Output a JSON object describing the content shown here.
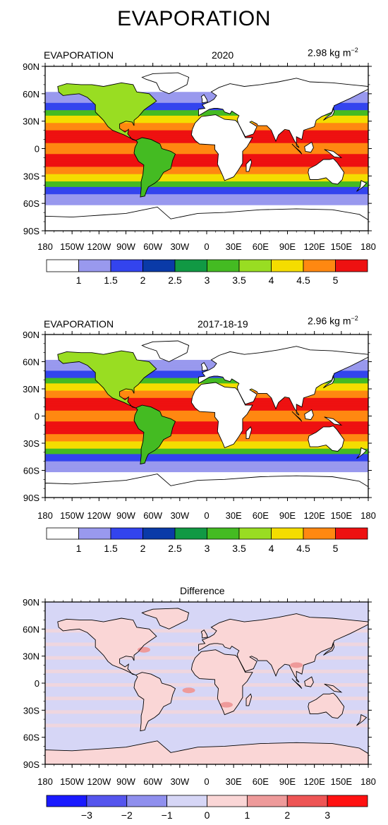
{
  "title": "EVAPORATION",
  "panels": [
    {
      "left_label": "EVAPORATION",
      "center_label": "2020",
      "right_label": "2.98 kg m",
      "right_label_sup": "−2",
      "kind": "abs"
    },
    {
      "left_label": "EVAPORATION",
      "center_label": "2017-18-19",
      "right_label": "2.96 kg m",
      "right_label_sup": "−2",
      "kind": "abs"
    },
    {
      "left_label": "",
      "center_label": "Difference",
      "right_label": "",
      "right_label_sup": "",
      "kind": "diff"
    }
  ],
  "lat_ticks": [
    "90N",
    "60N",
    "30N",
    "0",
    "30S",
    "60S",
    "90S"
  ],
  "lon_ticks": [
    "180",
    "150W",
    "120W",
    "90W",
    "60W",
    "30W",
    "0",
    "30E",
    "60E",
    "90E",
    "120E",
    "150E",
    "180"
  ],
  "colorbars": {
    "abs": {
      "colors": [
        "#ffffff",
        "#9999ee",
        "#3344ee",
        "#0a3aa8",
        "#119944",
        "#44bb22",
        "#99dd22",
        "#f4dd00",
        "#ff8811",
        "#ee1111"
      ],
      "labels": [
        "1",
        "1.5",
        "2",
        "2.5",
        "3",
        "3.5",
        "4",
        "4.5",
        "5"
      ]
    },
    "diff": {
      "colors": [
        "#1a1aff",
        "#5555ee",
        "#8f8fee",
        "#d6d6f6",
        "#fad6d6",
        "#ee9a9a",
        "#ee5555",
        "#ff1111"
      ],
      "labels": [
        "−3",
        "−2",
        "−1",
        "0",
        "1",
        "2",
        "3"
      ]
    }
  }
}
